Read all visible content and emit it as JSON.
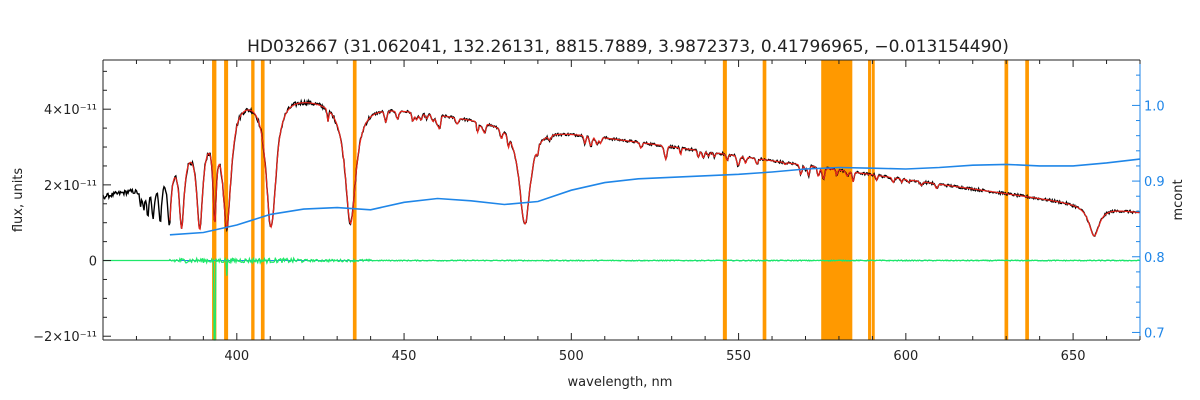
{
  "chart_data": {
    "type": "line",
    "title": "HD032667    (31.062041, 132.26131, 8815.7889, 3.9872373, 0.41796965, −0.013154490)",
    "xlabel": "wavelength, nm",
    "ylabel": "flux, units",
    "ylabel_right": "mcont",
    "xlim": [
      360,
      670
    ],
    "ylim": [
      -2.1e-11,
      5.3e-11
    ],
    "ylim_right": [
      0.69,
      1.06
    ],
    "x_ticks": [
      400,
      450,
      500,
      550,
      600,
      650
    ],
    "y_ticks": [
      {
        "value": -2e-11,
        "label": "−2×10⁻¹¹"
      },
      {
        "value": 0,
        "label": "0"
      },
      {
        "value": 2e-11,
        "label": "2×10⁻¹¹"
      },
      {
        "value": 4e-11,
        "label": "4×10⁻¹¹"
      }
    ],
    "y_ticks_right": [
      "0.7",
      "0.8",
      "0.9",
      "1.0"
    ],
    "grid": false,
    "colors": {
      "observed": "#000000",
      "model": "#e8241c",
      "residual": "#1ee86a",
      "continuum": "#1f86e8",
      "mask": "#ff9900",
      "axis": "#222222",
      "right_axis": "#1f86e8"
    },
    "masked_regions": [
      [
        392.6,
        393.9
      ],
      [
        396.2,
        397.4
      ],
      [
        404.3,
        405.3
      ],
      [
        407.2,
        408.3
      ],
      [
        434.7,
        435.8
      ],
      [
        545.3,
        546.5
      ],
      [
        557.2,
        558.3
      ],
      [
        574.7,
        584.0
      ],
      [
        588.7,
        589.6
      ],
      [
        589.8,
        590.7
      ],
      [
        629.5,
        630.6
      ],
      [
        635.7,
        636.8
      ]
    ],
    "continuum_points": [
      [
        380,
        0.829
      ],
      [
        390,
        0.832
      ],
      [
        400,
        0.842
      ],
      [
        410,
        0.856
      ],
      [
        420,
        0.863
      ],
      [
        430,
        0.865
      ],
      [
        440,
        0.862
      ],
      [
        450,
        0.872
      ],
      [
        460,
        0.877
      ],
      [
        470,
        0.874
      ],
      [
        480,
        0.869
      ],
      [
        490,
        0.873
      ],
      [
        500,
        0.888
      ],
      [
        510,
        0.898
      ],
      [
        520,
        0.903
      ],
      [
        530,
        0.905
      ],
      [
        540,
        0.907
      ],
      [
        550,
        0.909
      ],
      [
        560,
        0.912
      ],
      [
        570,
        0.916
      ],
      [
        580,
        0.918
      ],
      [
        590,
        0.917
      ],
      [
        600,
        0.916
      ],
      [
        610,
        0.918
      ],
      [
        620,
        0.921
      ],
      [
        630,
        0.922
      ],
      [
        640,
        0.92
      ],
      [
        650,
        0.92
      ],
      [
        660,
        0.924
      ],
      [
        670,
        0.929
      ]
    ],
    "balmer_lines": [
      {
        "x": 656.3,
        "depth": 0.55,
        "width": 1.9
      },
      {
        "x": 486.1,
        "depth": 0.72,
        "width": 2.0
      },
      {
        "x": 434.0,
        "depth": 0.75,
        "width": 2.0
      },
      {
        "x": 410.2,
        "depth": 0.8,
        "width": 1.8
      },
      {
        "x": 397.0,
        "depth": 0.78,
        "width": 1.5
      },
      {
        "x": 393.4,
        "depth": 0.7,
        "width": 0.6
      },
      {
        "x": 388.9,
        "depth": 0.75,
        "width": 1.1
      },
      {
        "x": 383.5,
        "depth": 0.7,
        "width": 0.9
      },
      {
        "x": 379.8,
        "depth": 0.62,
        "width": 0.7
      },
      {
        "x": 377.1,
        "depth": 0.55,
        "width": 0.6
      },
      {
        "x": 375.0,
        "depth": 0.48,
        "width": 0.5
      },
      {
        "x": 373.4,
        "depth": 0.4,
        "width": 0.4
      },
      {
        "x": 372.2,
        "depth": 0.32,
        "width": 0.35
      },
      {
        "x": 371.2,
        "depth": 0.25,
        "width": 0.3
      }
    ]
  }
}
